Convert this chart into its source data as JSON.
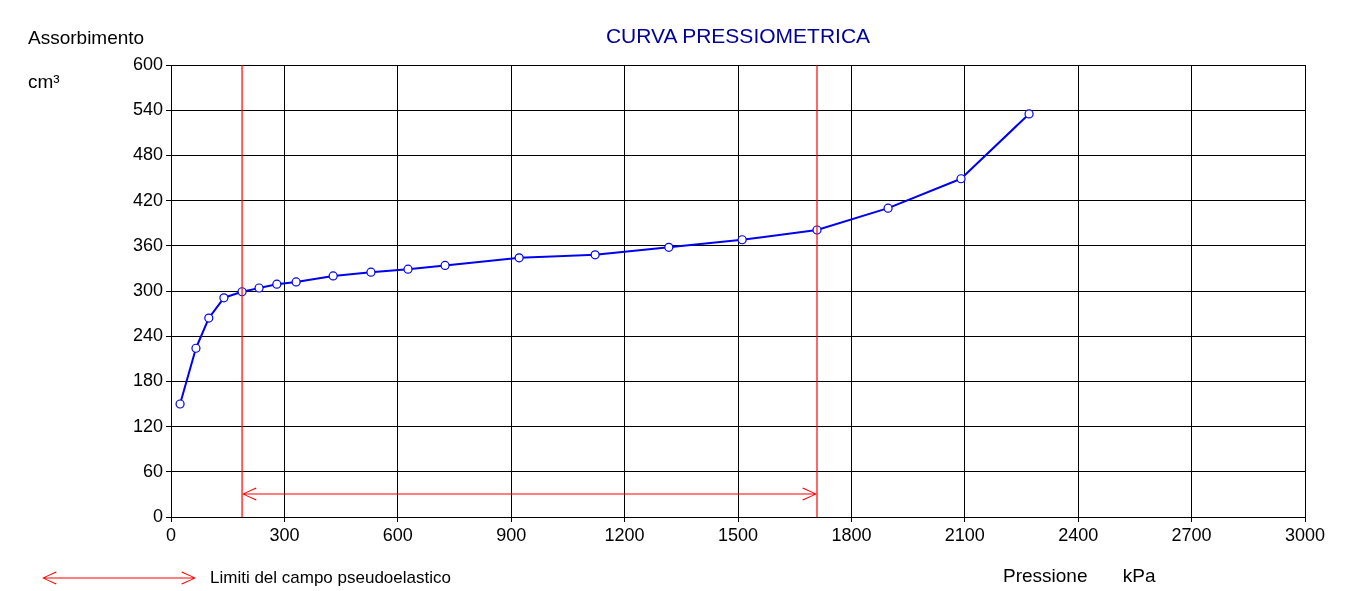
{
  "chart_data": {
    "type": "line",
    "title": "CURVA PRESSIOMETRICA",
    "xlabel": "Pressione kPa",
    "ylabel": "Assorbimento cm³",
    "series": [
      {
        "color": "#0000ee",
        "x": [
          24,
          66,
          100,
          140,
          188,
          233,
          280,
          331,
          429,
          529,
          627,
          725,
          921,
          1122,
          1317,
          1511,
          1709,
          1897,
          2090,
          2270
        ],
        "values": [
          150,
          224,
          264,
          291,
          299,
          304,
          309,
          312,
          320,
          325,
          329,
          334,
          344,
          348,
          358,
          368,
          381,
          410,
          449,
          535
        ]
      }
    ],
    "xlim": [
      0,
      3000
    ],
    "xticks": [
      0,
      300,
      600,
      900,
      1200,
      1500,
      1800,
      2100,
      2400,
      2700,
      3000
    ],
    "ylim": [
      0,
      600
    ],
    "yticks": [
      0,
      60,
      120,
      180,
      240,
      300,
      360,
      420,
      480,
      540,
      600
    ],
    "grid": true,
    "marker": "circle",
    "line_style": "solid",
    "legend": false,
    "ref_lines": [
      {
        "axis": "x",
        "value": 188,
        "color": "#ff0000"
      },
      {
        "axis": "x",
        "value": 1709,
        "color": "#ff0000"
      }
    ],
    "annotations": [
      "Limiti del campo pseudoelastico"
    ]
  }
}
